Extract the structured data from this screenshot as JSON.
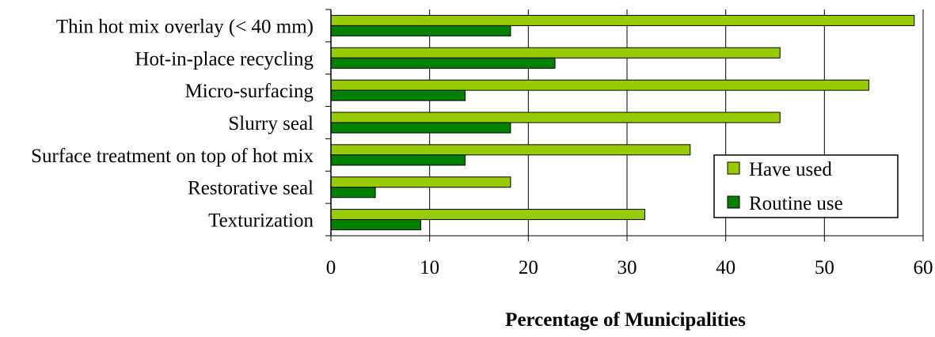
{
  "chart_data": {
    "type": "bar",
    "orientation": "horizontal",
    "categories": [
      "Thin hot mix overlay (< 40 mm)",
      "Hot-in-place recycling",
      "Micro-surfacing",
      "Slurry seal",
      "Surface treatment on top of hot mix",
      "Restorative seal",
      "Texturization"
    ],
    "series": [
      {
        "name": "Have used",
        "color": "#99cc00",
        "values": [
          59.1,
          45.5,
          54.5,
          45.5,
          36.4,
          18.2,
          31.8
        ]
      },
      {
        "name": "Routine use",
        "color": "#008000",
        "values": [
          18.2,
          22.7,
          13.6,
          18.2,
          13.6,
          4.5,
          9.1
        ]
      }
    ],
    "xlabel": "Percentage of Municipalities",
    "ylabel": "",
    "xlim": [
      0,
      60
    ],
    "xticks": [
      0,
      10,
      20,
      30,
      40,
      50,
      60
    ],
    "grid": "vertical",
    "legend": "bottom-right"
  }
}
